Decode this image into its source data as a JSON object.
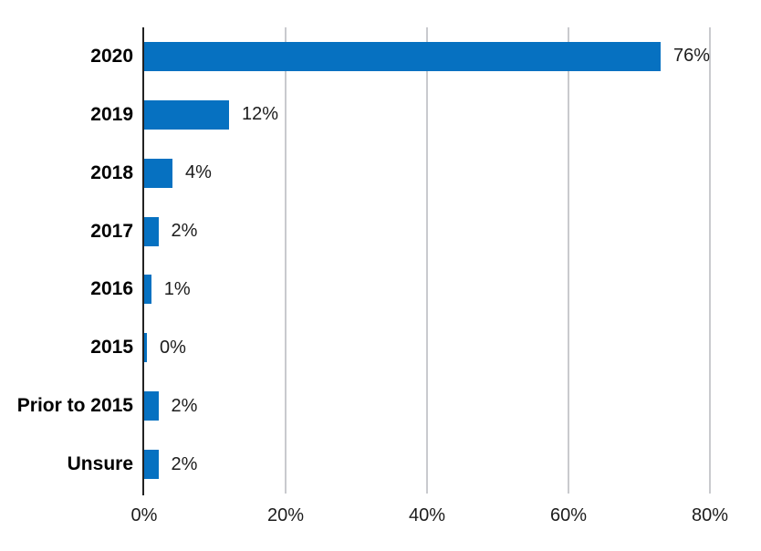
{
  "chart_data": {
    "type": "bar",
    "orientation": "horizontal",
    "title": "",
    "xlabel": "",
    "ylabel": "",
    "categories": [
      "2020",
      "2019",
      "2018",
      "2017",
      "2016",
      "2015",
      "Prior to 2015",
      "Unsure"
    ],
    "values": [
      76,
      12,
      4,
      2,
      1,
      0,
      2,
      2
    ],
    "value_labels": [
      "76%",
      "12%",
      "4%",
      "2%",
      "1%",
      "0%",
      "2%",
      "2%"
    ],
    "xlim": [
      0,
      80
    ],
    "x_ticks": [
      0,
      20,
      40,
      60,
      80
    ],
    "x_tick_labels": [
      "0%",
      "20%",
      "40%",
      "60%",
      "80%"
    ],
    "grid": true,
    "legend": false,
    "bar_color": "#0671C1",
    "gridline_color": "#C9CACE",
    "axis_color": "#222222",
    "label_color": "#1c1c1c"
  }
}
